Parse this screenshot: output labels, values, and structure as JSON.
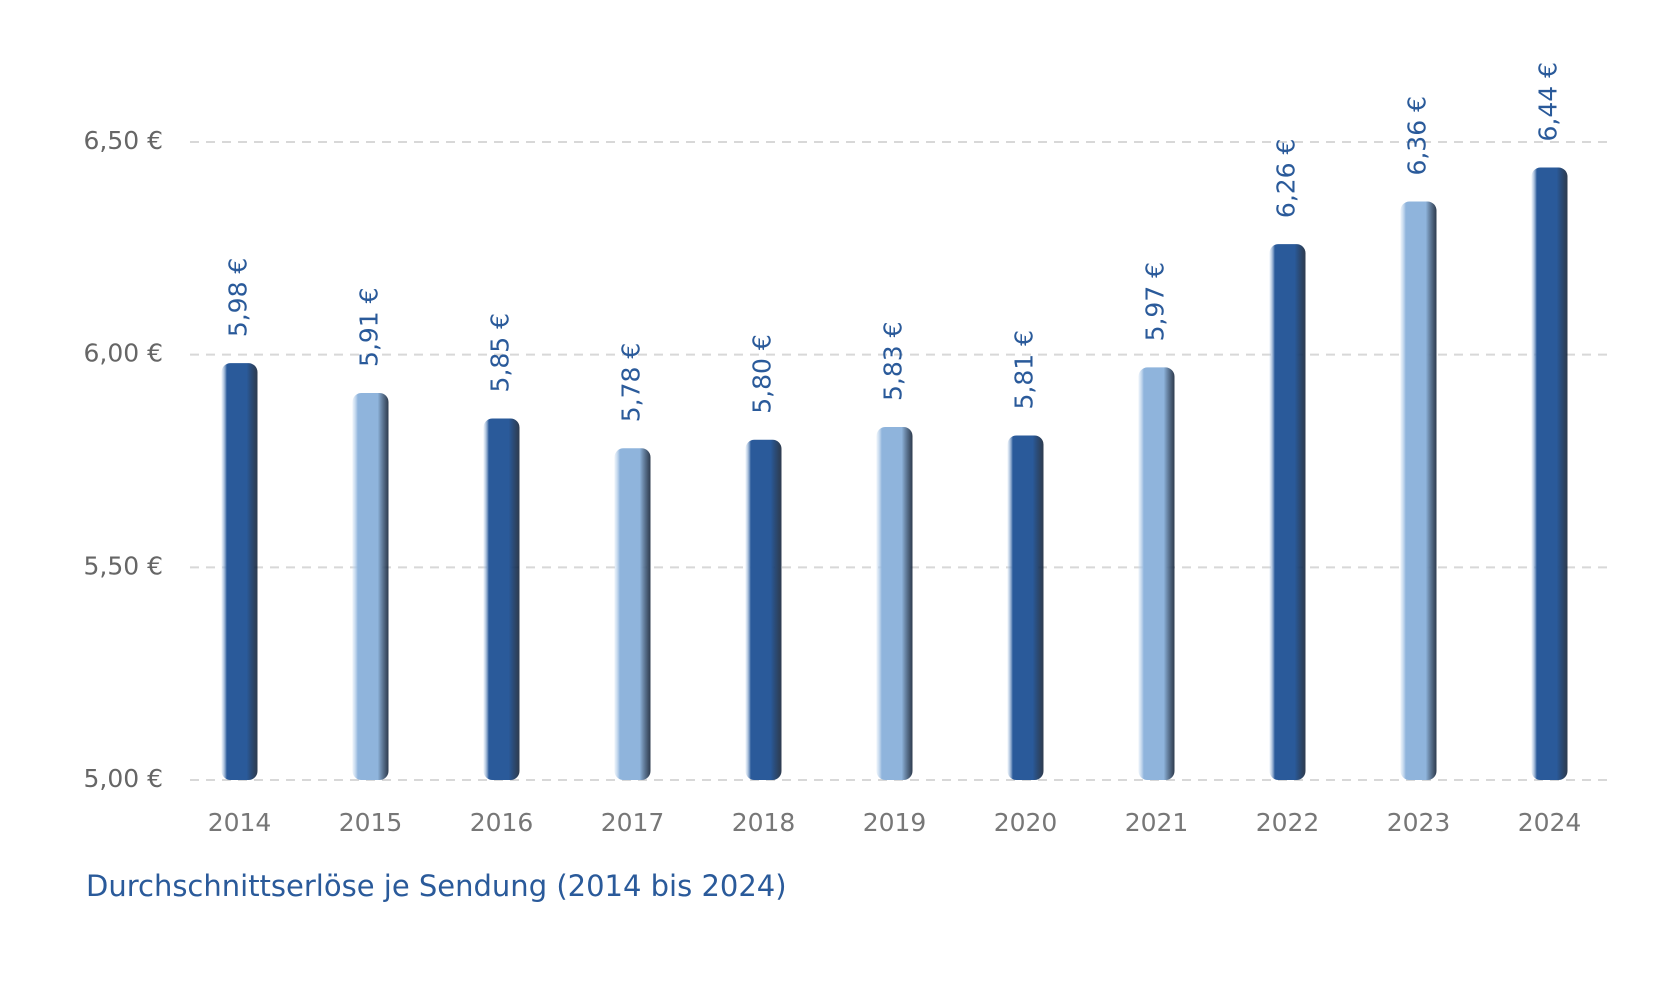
{
  "chart_data": {
    "type": "bar",
    "title": "Durchschnittserlöse je Sendung (2014 bis 2024)",
    "categories": [
      "2014",
      "2015",
      "2016",
      "2017",
      "2018",
      "2019",
      "2020",
      "2021",
      "2022",
      "2023",
      "2024"
    ],
    "values": [
      5.98,
      5.91,
      5.85,
      5.78,
      5.8,
      5.83,
      5.81,
      5.97,
      6.26,
      6.36,
      6.44
    ],
    "value_labels": [
      "5,98 €",
      "5,91 €",
      "5,85 €",
      "5,78 €",
      "5,80 €",
      "5,83 €",
      "5,81 €",
      "5,97 €",
      "6,26 €",
      "6,36 €",
      "6,44 €"
    ],
    "colors": [
      "#2a5a9a",
      "#8fb4dc",
      "#2a5a9a",
      "#8fb4dc",
      "#2a5a9a",
      "#8fb4dc",
      "#2a5a9a",
      "#8fb4dc",
      "#2a5a9a",
      "#8fb4dc",
      "#2a5a9a"
    ],
    "ylim": [
      5.0,
      6.5
    ],
    "yticks": [
      {
        "value": 5.0,
        "label": "5,00 €"
      },
      {
        "value": 5.5,
        "label": "5,50 €"
      },
      {
        "value": 6.0,
        "label": "6,00 €"
      },
      {
        "value": 6.5,
        "label": "6,50 €"
      }
    ],
    "grid": true
  }
}
